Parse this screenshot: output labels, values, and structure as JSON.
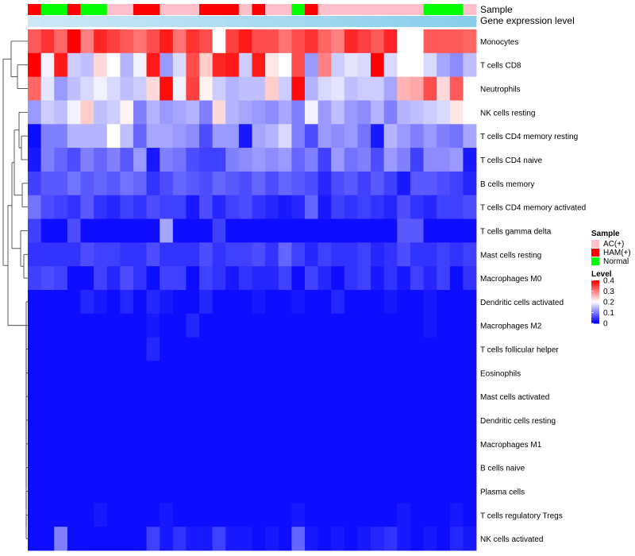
{
  "chart_data": {
    "type": "heatmap",
    "title": "",
    "annotation_tracks": [
      {
        "label": "Sample"
      },
      {
        "label": "Gene expression level"
      }
    ],
    "sample_groups": [
      "H",
      "N",
      "N",
      "H",
      "N",
      "N",
      "A",
      "A",
      "H",
      "H",
      "A",
      "A",
      "A",
      "H",
      "H",
      "H",
      "A",
      "H",
      "A",
      "A",
      "N",
      "H",
      "A",
      "A",
      "A",
      "A",
      "A",
      "A",
      "A",
      "A",
      "N",
      "N",
      "N",
      "A"
    ],
    "rows": [
      "Monocytes",
      "T cells CD8",
      "Neutrophils",
      "NK cells resting",
      "T cells CD4 memory resting",
      "T cells CD4 naive",
      "B cells memory",
      "T cells CD4 memory activated",
      "T cells gamma delta",
      "Mast cells resting",
      "Macrophages M0",
      "Dendritic cells activated",
      "Macrophages M2",
      "T cells follicular helper",
      "Eosinophils",
      "Mast cells activated",
      "Dendritic cells resting",
      "Macrophages M1",
      "B cells naive",
      "Plasma cells",
      "T cells regulatory  Tregs",
      "NK cells activated"
    ],
    "values": [
      [
        0.33,
        0.36,
        0.32,
        0.4,
        0.3,
        0.37,
        0.35,
        0.33,
        0.31,
        0.34,
        0.38,
        0.31,
        0.36,
        0.34,
        0.2,
        0.35,
        0.38,
        0.34,
        0.34,
        0.31,
        0.34,
        0.36,
        0.32,
        0.3,
        0.37,
        0.35,
        0.33,
        0.37,
        0.2,
        0.2,
        0.33,
        0.33,
        0.33,
        0.32
      ],
      [
        0.4,
        0.19,
        0.38,
        0.16,
        0.15,
        0.23,
        0.2,
        0.14,
        0.19,
        0.38,
        0.12,
        0.17,
        0.34,
        0.24,
        0.37,
        0.38,
        0.16,
        0.38,
        0.22,
        0.2,
        0.34,
        0.12,
        0.3,
        0.16,
        0.18,
        0.17,
        0.4,
        0.17,
        0.2,
        0.2,
        0.17,
        0.13,
        0.11,
        0.15
      ],
      [
        0.32,
        0.18,
        0.12,
        0.15,
        0.17,
        0.19,
        0.17,
        0.15,
        0.16,
        0.23,
        0.39,
        0.19,
        0.35,
        0.21,
        0.16,
        0.14,
        0.15,
        0.15,
        0.24,
        0.16,
        0.39,
        0.14,
        0.17,
        0.18,
        0.15,
        0.16,
        0.16,
        0.13,
        0.26,
        0.27,
        0.34,
        0.23,
        0.33,
        0.2
      ],
      [
        0.12,
        0.16,
        0.15,
        0.19,
        0.24,
        0.15,
        0.16,
        0.21,
        0.1,
        0.14,
        0.12,
        0.13,
        0.14,
        0.1,
        0.23,
        0.14,
        0.13,
        0.12,
        0.11,
        0.13,
        0.1,
        0.19,
        0.12,
        0.15,
        0.12,
        0.11,
        0.14,
        0.1,
        0.14,
        0.15,
        0.16,
        0.17,
        0.22,
        0.2
      ],
      [
        0.01,
        0.1,
        0.1,
        0.14,
        0.14,
        0.14,
        0.2,
        0.15,
        0.08,
        0.13,
        0.13,
        0.12,
        0.11,
        0.06,
        0.12,
        0.12,
        0.02,
        0.13,
        0.14,
        0.17,
        0.1,
        0.06,
        0.12,
        0.11,
        0.12,
        0.09,
        0.02,
        0.14,
        0.12,
        0.1,
        0.12,
        0.1,
        0.09,
        0.13
      ],
      [
        0.02,
        0.1,
        0.08,
        0.06,
        0.1,
        0.08,
        0.1,
        0.07,
        0.12,
        0.02,
        0.1,
        0.09,
        0.06,
        0.05,
        0.05,
        0.1,
        0.11,
        0.12,
        0.11,
        0.12,
        0.08,
        0.1,
        0.05,
        0.12,
        0.09,
        0.1,
        0.06,
        0.12,
        0.1,
        0.05,
        0.11,
        0.11,
        0.12,
        0.02
      ],
      [
        0.05,
        0.07,
        0.07,
        0.09,
        0.07,
        0.08,
        0.07,
        0.09,
        0.08,
        0.04,
        0.06,
        0.08,
        0.07,
        0.06,
        0.08,
        0.07,
        0.06,
        0.08,
        0.06,
        0.08,
        0.07,
        0.06,
        0.03,
        0.06,
        0.07,
        0.05,
        0.07,
        0.05,
        0.02,
        0.07,
        0.07,
        0.06,
        0.05,
        0.03
      ],
      [
        0.09,
        0.06,
        0.05,
        0.04,
        0.07,
        0.04,
        0.03,
        0.05,
        0.04,
        0.06,
        0.05,
        0.05,
        0.02,
        0.06,
        0.03,
        0.05,
        0.06,
        0.04,
        0.03,
        0.02,
        0.03,
        0.08,
        0.02,
        0.05,
        0.04,
        0.05,
        0.04,
        0.03,
        0.06,
        0.04,
        0.03,
        0.05,
        0.05,
        0.06
      ],
      [
        0.05,
        0.01,
        0.01,
        0.06,
        0.01,
        0.01,
        0.01,
        0.01,
        0.01,
        0.01,
        0.13,
        0.01,
        0.01,
        0.01,
        0.05,
        0.01,
        0.01,
        0.01,
        0.01,
        0.01,
        0.01,
        0.01,
        0.01,
        0.01,
        0.01,
        0.01,
        0.01,
        0.01,
        0.07,
        0.07,
        0.01,
        0.01,
        0.01,
        0.01
      ],
      [
        0.04,
        0.04,
        0.04,
        0.04,
        0.06,
        0.05,
        0.05,
        0.04,
        0.04,
        0.06,
        0.04,
        0.04,
        0.04,
        0.06,
        0.04,
        0.05,
        0.05,
        0.06,
        0.04,
        0.08,
        0.05,
        0.03,
        0.05,
        0.04,
        0.04,
        0.05,
        0.03,
        0.04,
        0.06,
        0.04,
        0.04,
        0.05,
        0.04,
        0.05
      ],
      [
        0.05,
        0.06,
        0.05,
        0.01,
        0.01,
        0.05,
        0.03,
        0.06,
        0.04,
        0.01,
        0.05,
        0.05,
        0.01,
        0.05,
        0.04,
        0.02,
        0.04,
        0.03,
        0.03,
        0.05,
        0.01,
        0.05,
        0.03,
        0.01,
        0.04,
        0.05,
        0.02,
        0.04,
        0.02,
        0.05,
        0.03,
        0.05,
        0.01,
        0.04
      ],
      [
        0.01,
        0.01,
        0.01,
        0.01,
        0.03,
        0.02,
        0.01,
        0.03,
        0.01,
        0.03,
        0.02,
        0.01,
        0.01,
        0.03,
        0.01,
        0.01,
        0.01,
        0.02,
        0.01,
        0.01,
        0.02,
        0.01,
        0.01,
        0.03,
        0.01,
        0.01,
        0.01,
        0.02,
        0.01,
        0.01,
        0.02,
        0.01,
        0.01,
        0.01
      ],
      [
        0.01,
        0.01,
        0.01,
        0.01,
        0.01,
        0.01,
        0.01,
        0.01,
        0.01,
        0.02,
        0.01,
        0.01,
        0.03,
        0.01,
        0.01,
        0.01,
        0.01,
        0.01,
        0.01,
        0.01,
        0.01,
        0.01,
        0.01,
        0.01,
        0.01,
        0.01,
        0.01,
        0.01,
        0.01,
        0.01,
        0.02,
        0.01,
        0.01,
        0.01
      ],
      [
        0.01,
        0.01,
        0.01,
        0.01,
        0.01,
        0.01,
        0.01,
        0.01,
        0.01,
        0.03,
        0.01,
        0.01,
        0.01,
        0.01,
        0.01,
        0.01,
        0.01,
        0.01,
        0.01,
        0.01,
        0.01,
        0.01,
        0.01,
        0.01,
        0.01,
        0.01,
        0.01,
        0.01,
        0.01,
        0.01,
        0.01,
        0.01,
        0.01,
        0.01
      ],
      [
        0.01,
        0.01,
        0.01,
        0.01,
        0.01,
        0.01,
        0.01,
        0.01,
        0.01,
        0.01,
        0.01,
        0.01,
        0.01,
        0.01,
        0.01,
        0.01,
        0.01,
        0.01,
        0.01,
        0.01,
        0.01,
        0.01,
        0.01,
        0.01,
        0.01,
        0.01,
        0.01,
        0.01,
        0.01,
        0.01,
        0.01,
        0.01,
        0.01,
        0.01
      ],
      [
        0.01,
        0.01,
        0.01,
        0.01,
        0.01,
        0.01,
        0.01,
        0.01,
        0.01,
        0.01,
        0.01,
        0.01,
        0.01,
        0.01,
        0.01,
        0.01,
        0.01,
        0.01,
        0.01,
        0.01,
        0.01,
        0.01,
        0.01,
        0.01,
        0.01,
        0.01,
        0.01,
        0.01,
        0.01,
        0.01,
        0.01,
        0.01,
        0.01,
        0.01
      ],
      [
        0.01,
        0.01,
        0.01,
        0.01,
        0.01,
        0.01,
        0.01,
        0.01,
        0.01,
        0.01,
        0.01,
        0.01,
        0.01,
        0.01,
        0.01,
        0.01,
        0.01,
        0.01,
        0.01,
        0.01,
        0.01,
        0.01,
        0.01,
        0.01,
        0.01,
        0.01,
        0.01,
        0.01,
        0.01,
        0.01,
        0.01,
        0.01,
        0.01,
        0.01
      ],
      [
        0.01,
        0.01,
        0.01,
        0.01,
        0.01,
        0.01,
        0.01,
        0.01,
        0.01,
        0.01,
        0.01,
        0.01,
        0.01,
        0.01,
        0.01,
        0.01,
        0.01,
        0.01,
        0.01,
        0.01,
        0.01,
        0.01,
        0.01,
        0.01,
        0.01,
        0.01,
        0.01,
        0.01,
        0.01,
        0.01,
        0.01,
        0.01,
        0.01,
        0.01
      ],
      [
        0.01,
        0.01,
        0.01,
        0.01,
        0.01,
        0.01,
        0.01,
        0.01,
        0.01,
        0.01,
        0.01,
        0.01,
        0.01,
        0.01,
        0.01,
        0.01,
        0.01,
        0.01,
        0.01,
        0.01,
        0.01,
        0.01,
        0.01,
        0.01,
        0.01,
        0.01,
        0.01,
        0.01,
        0.01,
        0.01,
        0.01,
        0.01,
        0.01,
        0.01
      ],
      [
        0.01,
        0.01,
        0.01,
        0.01,
        0.01,
        0.01,
        0.01,
        0.01,
        0.01,
        0.01,
        0.01,
        0.01,
        0.01,
        0.01,
        0.01,
        0.01,
        0.01,
        0.01,
        0.01,
        0.01,
        0.01,
        0.01,
        0.01,
        0.01,
        0.01,
        0.01,
        0.01,
        0.01,
        0.01,
        0.01,
        0.01,
        0.01,
        0.01,
        0.01
      ],
      [
        0.01,
        0.01,
        0.01,
        0.01,
        0.01,
        0.02,
        0.01,
        0.01,
        0.01,
        0.01,
        0.02,
        0.01,
        0.01,
        0.01,
        0.01,
        0.01,
        0.01,
        0.01,
        0.01,
        0.01,
        0.02,
        0.01,
        0.01,
        0.01,
        0.01,
        0.01,
        0.01,
        0.01,
        0.02,
        0.01,
        0.01,
        0.01,
        0.02,
        0.01
      ],
      [
        0.01,
        0.01,
        0.1,
        0.01,
        0.01,
        0.01,
        0.01,
        0.01,
        0.01,
        0.05,
        0.02,
        0.04,
        0.02,
        0.02,
        0.05,
        0.02,
        0.02,
        0.01,
        0.02,
        0.01,
        0.08,
        0.02,
        0.01,
        0.02,
        0.01,
        0.02,
        0.03,
        0.04,
        0.02,
        0.01,
        0.02,
        0.01,
        0.03,
        0.02
      ]
    ],
    "legend": {
      "sample": {
        "title": "Sample",
        "items": [
          {
            "label": "AC(+)",
            "color": "#ffc0cb"
          },
          {
            "label": "HAM(+)",
            "color": "#ff0000"
          },
          {
            "label": "Normal",
            "color": "#00ff00"
          }
        ]
      },
      "level": {
        "title": "Level",
        "ticks": [
          "0.4",
          "0.3",
          "0.2",
          "0.1",
          "0"
        ],
        "tick_values": [
          0.4,
          0.3,
          0.2,
          0.1,
          0
        ],
        "range": [
          0,
          0.4
        ]
      }
    },
    "colors": {
      "low": "#0000ff",
      "mid": "#ffffff",
      "high": "#ff0000",
      "expression_bar": "#87ceeb"
    },
    "group_colors": {
      "A": "#ffc0cb",
      "H": "#ff0000",
      "N": "#00ff00"
    }
  }
}
